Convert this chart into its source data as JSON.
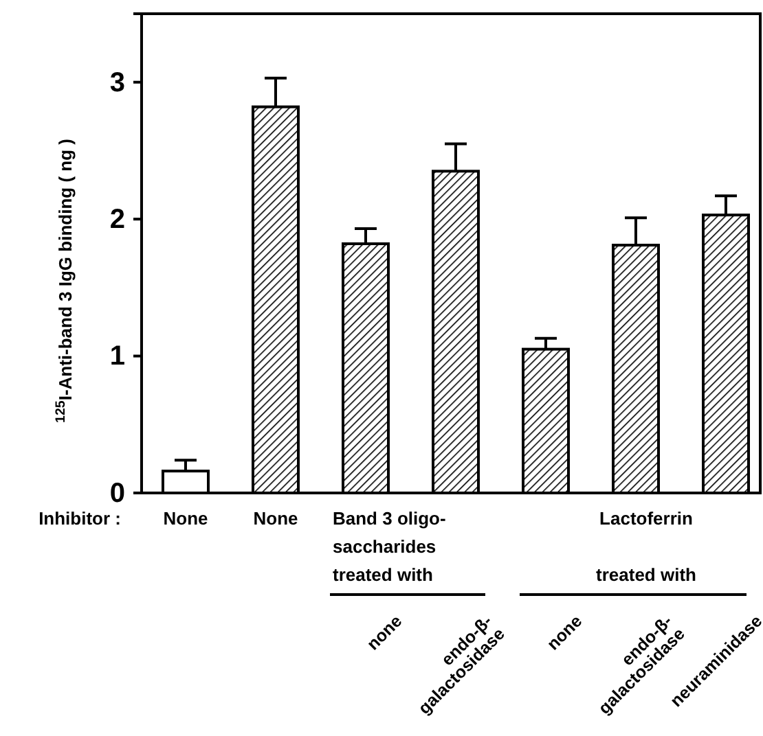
{
  "chart_data": {
    "type": "bar",
    "ylabel": "$^{125}$I-Anti-band 3 IgG binding ( ng )",
    "categories": [
      null,
      null,
      "none",
      "endo-β-\ngalactosidase",
      "none",
      "endo-β-\ngalactosidase",
      "neuraminidase"
    ],
    "values": [
      0.16,
      2.82,
      1.82,
      2.35,
      1.05,
      1.81,
      2.03
    ],
    "errors": [
      0.08,
      0.21,
      0.11,
      0.2,
      0.08,
      0.2,
      0.14
    ],
    "colors": [
      "#ffffff",
      "#000000",
      "#000000",
      "#000000",
      "#000000",
      "#000000",
      "#000000"
    ],
    "ylim": [
      0,
      3.5
    ],
    "yticks": [
      0,
      1,
      2,
      3
    ],
    "grid": false,
    "annotations": [
      "None",
      "None",
      "Inhibitor :",
      "Band 3 oligo-\nsaccharides\ntreated with",
      "Lactoferrin",
      "treated with"
    ]
  }
}
